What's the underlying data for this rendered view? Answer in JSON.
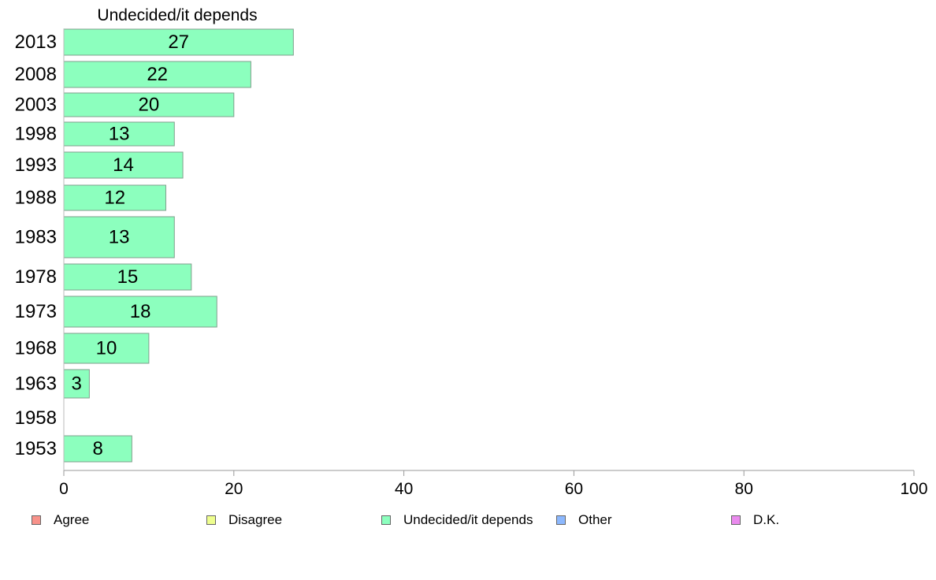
{
  "chart_data": {
    "type": "bar",
    "orientation": "horizontal",
    "title": "Undecided/it depends",
    "categories": [
      "2013",
      "2008",
      "2003",
      "1998",
      "1993",
      "1988",
      "1983",
      "1978",
      "1973",
      "1968",
      "1963",
      "1958",
      "1953"
    ],
    "series": [
      {
        "name": "Undecided/it depends",
        "values": [
          27,
          22,
          20,
          13,
          14,
          12,
          13,
          15,
          18,
          10,
          3,
          null,
          8
        ]
      }
    ],
    "xlim": [
      0,
      100
    ],
    "xticks": [
      0,
      20,
      40,
      60,
      80,
      100
    ],
    "grid": false,
    "bar_color": "#8cffbe",
    "legend": {
      "placement": "bottom",
      "items": [
        {
          "label": "Agree",
          "color": "#f8928a"
        },
        {
          "label": "Disagree",
          "color": "#eefe8e"
        },
        {
          "label": "Undecided/it depends",
          "color": "#8cffbe"
        },
        {
          "label": "Other",
          "color": "#8cb8fe"
        },
        {
          "label": "D.K.",
          "color": "#ea8aee"
        }
      ]
    }
  }
}
